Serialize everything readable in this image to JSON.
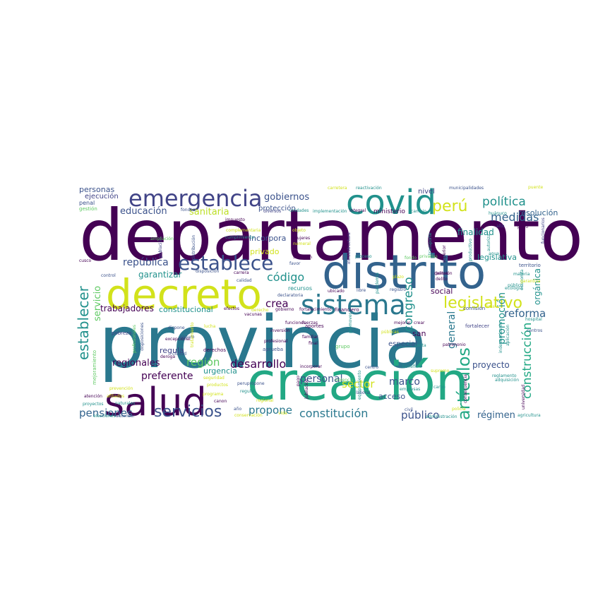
{
  "words": [
    {
      "text": "departamento",
      "color": "#440154"
    },
    {
      "text": "provincia",
      "color": "#2a788e"
    },
    {
      "text": "creación",
      "color": "#22a884"
    },
    {
      "text": "distrito",
      "color": "#33638d"
    },
    {
      "text": "decreto",
      "color": "#d2e21b"
    },
    {
      "text": "salud",
      "color": "#440154"
    },
    {
      "text": "covid",
      "color": "#21918c"
    },
    {
      "text": "emergencia",
      "color": "#414487"
    },
    {
      "text": "sistema",
      "color": "#2a788e"
    },
    {
      "text": "establece",
      "color": "#3b528b"
    },
    {
      "text": "servicios",
      "color": "#3b528b"
    },
    {
      "text": "establecer",
      "color": "#21918c"
    },
    {
      "text": "legislativo",
      "color": "#d2e21b"
    },
    {
      "text": "artículos",
      "color": "#22a884"
    },
    {
      "text": "perú",
      "color": "#d2e21b"
    },
    {
      "text": "política",
      "color": "#21918c"
    },
    {
      "text": "desarrollo",
      "color": "#440154"
    },
    {
      "text": "construcción",
      "color": "#22a884"
    },
    {
      "text": "congreso",
      "color": "#21918c"
    },
    {
      "text": "constitución",
      "color": "#2a788e"
    },
    {
      "text": "pensiones",
      "color": "#33638d"
    },
    {
      "text": "propone",
      "color": "#2a788e"
    },
    {
      "text": "región",
      "color": "#5ec962"
    },
    {
      "text": "regionales",
      "color": "#440154"
    },
    {
      "text": "medidas",
      "color": "#33638d"
    },
    {
      "text": "reforma",
      "color": "#33638d"
    },
    {
      "text": "código",
      "color": "#21918c"
    },
    {
      "text": "república",
      "color": "#3b528b"
    },
    {
      "text": "gobiernos",
      "color": "#3b528b"
    },
    {
      "text": "sanitaria",
      "color": "#bddf26"
    },
    {
      "text": "educación",
      "color": "#3b528b"
    },
    {
      "text": "público",
      "color": "#3b528b"
    },
    {
      "text": "régimen",
      "color": "#33638d"
    },
    {
      "text": "sector",
      "color": "#d2e21b"
    },
    {
      "text": "personal",
      "color": "#3b528b"
    },
    {
      "text": "marco",
      "color": "#3b528b"
    },
    {
      "text": "crea",
      "color": "#440154"
    },
    {
      "text": "servicio",
      "color": "#5ec962"
    },
    {
      "text": "general",
      "color": "#2a788e"
    },
    {
      "text": "promoción",
      "color": "#21918c"
    },
    {
      "text": "orgánica",
      "color": "#21918c"
    },
    {
      "text": "trabajadores",
      "color": "#440154"
    },
    {
      "text": "preferente",
      "color": "#440154"
    },
    {
      "text": "garantizar",
      "color": "#21918c"
    },
    {
      "text": "constitucional",
      "color": "#21918c"
    },
    {
      "text": "proyecto",
      "color": "#3b528b"
    },
    {
      "text": "regula",
      "color": "#414487"
    },
    {
      "text": "acceso",
      "color": "#3b528b"
    },
    {
      "text": "personas",
      "color": "#3b528b"
    },
    {
      "text": "nivel",
      "color": "#414487"
    },
    {
      "text": "incorpora",
      "color": "#3b528b"
    },
    {
      "text": "privado",
      "color": "#d2e21b"
    },
    {
      "text": "especial",
      "color": "#3b528b"
    },
    {
      "text": "san",
      "color": "#440154"
    },
    {
      "text": "social",
      "color": "#440154"
    },
    {
      "text": "finalidad",
      "color": "#21918c"
    },
    {
      "text": "legislativa",
      "color": "#21918c"
    },
    {
      "text": "resolución",
      "color": "#33638d"
    },
    {
      "text": "urgencia",
      "color": "#21918c"
    },
    {
      "text": "ministerio",
      "color": "#440154"
    },
    {
      "text": "protección",
      "color": "#3b528b"
    },
    {
      "text": "ejecución",
      "color": "#414487"
    },
    {
      "text": "penal",
      "color": "#3b528b"
    },
    {
      "text": "gestión",
      "color": "#5ec962"
    },
    {
      "text": "recursos",
      "color": "#21918c"
    },
    {
      "text": "financiero",
      "color": "#440154"
    },
    {
      "text": "aportes",
      "color": "#440154"
    },
    {
      "text": "fortalecer",
      "color": "#414487"
    },
    {
      "text": "territorio",
      "color": "#3b528b"
    },
    {
      "text": "comisión",
      "color": "#3b528b"
    },
    {
      "text": "funcionarios",
      "color": "#414487"
    },
    {
      "text": "municipalidades",
      "color": "#3b528b"
    },
    {
      "text": "reactivación",
      "color": "#21918c"
    },
    {
      "text": "carretera",
      "color": "#d2e21b"
    },
    {
      "text": "puente",
      "color": "#d2e21b"
    },
    {
      "text": "agricultura",
      "color": "#21918c"
    },
    {
      "text": "administración",
      "color": "#21918c"
    },
    {
      "text": "elecciones",
      "color": "#21918c"
    },
    {
      "text": "conservación",
      "color": "#d2e21b"
    },
    {
      "text": "universidad",
      "color": "#440154"
    },
    {
      "text": "atención",
      "color": "#440154"
    },
    {
      "text": "afiliados",
      "color": "#d2e21b"
    },
    {
      "text": "mejoramiento",
      "color": "#5ec962"
    },
    {
      "text": "pobreza",
      "color": "#414487"
    },
    {
      "text": "derechos",
      "color": "#440154"
    },
    {
      "text": "aprueba",
      "color": "#3b528b"
    },
    {
      "text": "grupo",
      "color": "#5ec962"
    },
    {
      "text": "fondos",
      "color": "#3b528b"
    },
    {
      "text": "diversos",
      "color": "#414487"
    },
    {
      "text": "unidades",
      "color": "#21918c"
    },
    {
      "text": "implementación",
      "color": "#21918c"
    },
    {
      "text": "integral",
      "color": "#440154"
    },
    {
      "text": "cambio",
      "color": "#21918c"
    },
    {
      "text": "huánuco",
      "color": "#21918c"
    },
    {
      "text": "alto",
      "color": "#414487"
    },
    {
      "text": "puno",
      "color": "#440154"
    },
    {
      "text": "económico",
      "color": "#440154"
    },
    {
      "text": "transporte",
      "color": "#21918c"
    },
    {
      "text": "infraestructura",
      "color": "#414487"
    },
    {
      "text": "mujeres",
      "color": "#440154"
    },
    {
      "text": "numeral",
      "color": "#d2e21b"
    },
    {
      "text": "objeto",
      "color": "#d2e21b"
    },
    {
      "text": "complementaria",
      "color": "#d2e21b"
    },
    {
      "text": "impuesto",
      "color": "#440154"
    },
    {
      "text": "cumplimiento",
      "color": "#21918c"
    },
    {
      "text": "distribución",
      "color": "#3b528b"
    },
    {
      "text": "población",
      "color": "#414487"
    },
    {
      "text": "ampliación",
      "color": "#5ec962"
    },
    {
      "text": "cusco",
      "color": "#440154"
    },
    {
      "text": "control",
      "color": "#3b528b"
    },
    {
      "text": "carrera",
      "color": "#440154"
    },
    {
      "text": "calidad",
      "color": "#3b528b"
    },
    {
      "text": "disposición",
      "color": "#3b528b"
    },
    {
      "text": "favor",
      "color": "#3b528b"
    },
    {
      "text": "situación",
      "color": "#440154"
    },
    {
      "text": "proceso",
      "color": "#21918c"
    },
    {
      "text": "fondo",
      "color": "#5ec962"
    },
    {
      "text": "privadas",
      "color": "#5ec962"
    },
    {
      "text": "superior",
      "color": "#440154"
    },
    {
      "text": "productivo",
      "color": "#21918c"
    },
    {
      "text": "autoriza",
      "color": "#21918c"
    },
    {
      "text": "agua",
      "color": "#21918c"
    },
    {
      "text": "materia",
      "color": "#21918c"
    },
    {
      "text": "economía",
      "color": "#21918c"
    },
    {
      "text": "público",
      "color": "#21918c"
    },
    {
      "text": "garantiza",
      "color": "#d2e21b"
    },
    {
      "text": "lima",
      "color": "#d2e21b"
    },
    {
      "text": "hospital",
      "color": "#21918c"
    },
    {
      "text": "centros",
      "color": "#3b528b"
    },
    {
      "text": "aplicación",
      "color": "#21918c"
    },
    {
      "text": "independencia",
      "color": "#21918c"
    },
    {
      "text": "patrimonio",
      "color": "#440154"
    },
    {
      "text": "beneficio",
      "color": "#21918c"
    },
    {
      "text": "supremo",
      "color": "#d2e21b"
    },
    {
      "text": "cargo",
      "color": "#21918c"
    },
    {
      "text": "empresas",
      "color": "#21918c"
    },
    {
      "text": "consecuencia",
      "color": "#440154"
    },
    {
      "text": "adquisición",
      "color": "#21918c"
    },
    {
      "text": "reglamento",
      "color": "#21918c"
    },
    {
      "text": "policía",
      "color": "#d2e21b"
    },
    {
      "text": "civil",
      "color": "#3b528b"
    },
    {
      "text": "laboral",
      "color": "#3b528b"
    },
    {
      "text": "equipamiento",
      "color": "#21918c"
    },
    {
      "text": "violencia",
      "color": "#5ec962"
    },
    {
      "text": "jubilación",
      "color": "#440154"
    },
    {
      "text": "pago",
      "color": "#440154"
    },
    {
      "text": "incorporar",
      "color": "#440154"
    },
    {
      "text": "centro",
      "color": "#3b528b"
    },
    {
      "text": "final",
      "color": "#440154"
    },
    {
      "text": "profesional",
      "color": "#440154"
    },
    {
      "text": "familiar",
      "color": "#440154"
    },
    {
      "text": "inversión",
      "color": "#440154"
    },
    {
      "text": "fuerzas",
      "color": "#440154"
    },
    {
      "text": "funciones",
      "color": "#440154"
    },
    {
      "text": "promover",
      "color": "#21918c"
    },
    {
      "text": "santa",
      "color": "#21918c"
    },
    {
      "text": "públicas",
      "color": "#d2e21b"
    },
    {
      "text": "mejorar",
      "color": "#440154"
    },
    {
      "text": "crear",
      "color": "#440154"
    },
    {
      "text": "regional",
      "color": "#d2e21b"
    },
    {
      "text": "vida",
      "color": "#d2e21b"
    },
    {
      "text": "año",
      "color": "#3b528b"
    },
    {
      "text": "canon",
      "color": "#440154"
    },
    {
      "text": "regular",
      "color": "#21918c"
    },
    {
      "text": "peruprópone",
      "color": "#3b528b"
    },
    {
      "text": "productos",
      "color": "#d2e21b"
    },
    {
      "text": "seguridad",
      "color": "#d2e21b"
    },
    {
      "text": "programa",
      "color": "#d2e21b"
    },
    {
      "text": "prevención",
      "color": "#d2e21b"
    },
    {
      "text": "proyectos",
      "color": "#21918c"
    },
    {
      "text": "autorizar",
      "color": "#3b528b"
    },
    {
      "text": "naturales",
      "color": "#21918c"
    },
    {
      "text": "ciudad",
      "color": "#3b528b"
    },
    {
      "text": "deroga",
      "color": "#440154"
    },
    {
      "text": "excepcional",
      "color": "#440154"
    },
    {
      "text": "seguro",
      "color": "#3b528b"
    },
    {
      "text": "lucha",
      "color": "#d2e21b"
    },
    {
      "text": "dispone",
      "color": "#3b528b"
    },
    {
      "text": "profesionales",
      "color": "#5ec962"
    },
    {
      "text": "disposiciones",
      "color": "#3b528b"
    },
    {
      "text": "tratamiento",
      "color": "#d2e21b"
    },
    {
      "text": "efectos",
      "color": "#440154"
    },
    {
      "text": "vacunas",
      "color": "#440154"
    },
    {
      "text": "derecho",
      "color": "#d2e21b"
    },
    {
      "text": "gobierno",
      "color": "#440154"
    },
    {
      "text": "fortalecimiento",
      "color": "#440154"
    },
    {
      "text": "declaratoria",
      "color": "#3b528b"
    },
    {
      "text": "ubicado",
      "color": "#440154"
    },
    {
      "text": "libre",
      "color": "#3b528b"
    },
    {
      "text": "pandemia",
      "color": "#21918c"
    },
    {
      "text": "registro",
      "color": "#3b528b"
    },
    {
      "text": "delitos",
      "color": "#440154"
    },
    {
      "text": "delito",
      "color": "#440154"
    },
    {
      "text": "pensión",
      "color": "#440154"
    },
    {
      "text": "plazo",
      "color": "#d2e21b"
    },
    {
      "text": "ecología",
      "color": "#21918c"
    }
  ]
}
